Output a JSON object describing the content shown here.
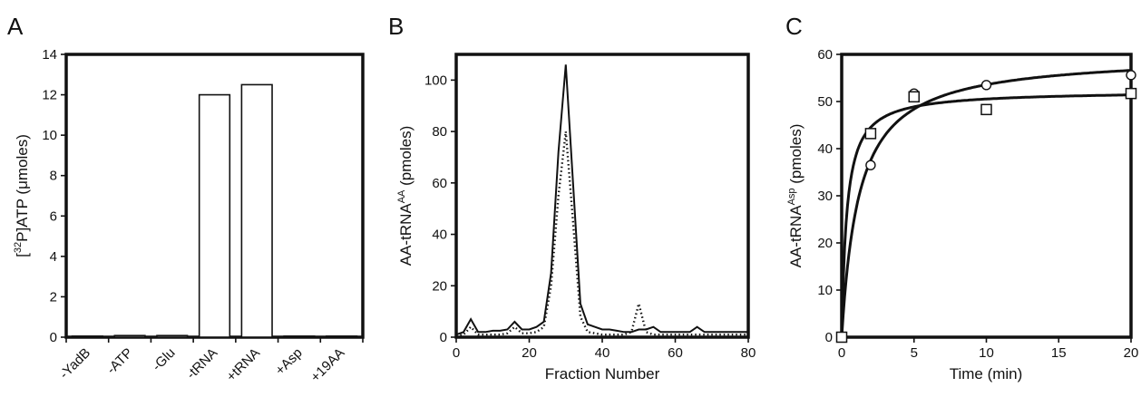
{
  "chart_data": [
    {
      "panel": "A",
      "type": "bar",
      "ylabel_prefix": "[",
      "ylabel_sup": "32",
      "ylabel_suffix": "P]ATP (μmoles)",
      "ylim": [
        0,
        14
      ],
      "yticks": [
        0,
        2,
        4,
        6,
        8,
        10,
        12,
        14
      ],
      "categories": [
        "-YadB",
        "-ATP",
        "-Glu",
        "-tRNA",
        "+tRNA",
        "+Asp",
        "+19AA"
      ],
      "values": [
        0.05,
        0.08,
        0.08,
        12.0,
        12.5,
        0.05,
        0.05
      ]
    },
    {
      "panel": "B",
      "type": "line",
      "xlabel": "Fraction Number",
      "ylabel_main": "AA-tRNA",
      "ylabel_sup": "AA",
      "ylabel_suffix": " (pmoles)",
      "xlim": [
        0,
        80
      ],
      "ylim": [
        0,
        110
      ],
      "xticks": [
        0,
        20,
        40,
        60,
        80
      ],
      "yticks": [
        0,
        20,
        40,
        60,
        80,
        100
      ],
      "series": [
        {
          "style": "solid",
          "x": [
            0,
            2,
            4,
            6,
            8,
            10,
            12,
            14,
            16,
            18,
            20,
            22,
            24,
            26,
            28,
            30,
            32,
            34,
            36,
            38,
            40,
            42,
            44,
            46,
            48,
            50,
            52,
            54,
            56,
            58,
            60,
            62,
            64,
            66,
            68,
            70,
            72,
            74,
            76,
            78,
            80
          ],
          "values": [
            1,
            2,
            7,
            2,
            2,
            2.5,
            2.5,
            3,
            6,
            3,
            3,
            4,
            6,
            25,
            72,
            106,
            60,
            13,
            5,
            4,
            3,
            3,
            2.5,
            2,
            2,
            3,
            3,
            4,
            2,
            2,
            2,
            2,
            2,
            4,
            2,
            2,
            2,
            2,
            2,
            2,
            2
          ]
        },
        {
          "style": "dotted",
          "x": [
            0,
            2,
            4,
            6,
            8,
            10,
            12,
            14,
            16,
            18,
            20,
            22,
            24,
            26,
            28,
            30,
            32,
            34,
            36,
            38,
            40,
            42,
            44,
            46,
            48,
            50,
            52,
            54,
            56,
            58,
            60,
            62,
            64,
            66,
            68,
            70,
            72,
            74,
            76,
            78,
            80
          ],
          "values": [
            0.5,
            1,
            4,
            1,
            1,
            1,
            1,
            1.5,
            4,
            1.5,
            1.5,
            2,
            4,
            20,
            55,
            80,
            45,
            8,
            2,
            1.5,
            1,
            1,
            1,
            1,
            2,
            13,
            2,
            1,
            1,
            1,
            1,
            1,
            1,
            1,
            1,
            1,
            1,
            1,
            1,
            1,
            1
          ]
        }
      ]
    },
    {
      "panel": "C",
      "type": "scatter",
      "xlabel": "Time (min)",
      "ylabel_main": "AA-tRNA",
      "ylabel_sup": "Asp",
      "ylabel_suffix": " (pmoles)",
      "xlim": [
        0,
        20
      ],
      "ylim": [
        0,
        60
      ],
      "xticks": [
        0,
        5,
        10,
        15,
        20
      ],
      "yticks": [
        0,
        10,
        20,
        30,
        40,
        50,
        60
      ],
      "series": [
        {
          "marker": "circle",
          "x": [
            0,
            2,
            5,
            10,
            20
          ],
          "values": [
            0,
            36.5,
            51.7,
            53.5,
            55.6
          ],
          "fit_vmax": 60,
          "fit_k": 1.2
        },
        {
          "marker": "square",
          "x": [
            0,
            2,
            5,
            10,
            20
          ],
          "values": [
            0,
            43.2,
            51,
            48.3,
            51.7
          ],
          "fit_vmax": 52.3,
          "fit_k": 0.35
        }
      ]
    }
  ],
  "panel_letters": [
    "A",
    "B",
    "C"
  ]
}
